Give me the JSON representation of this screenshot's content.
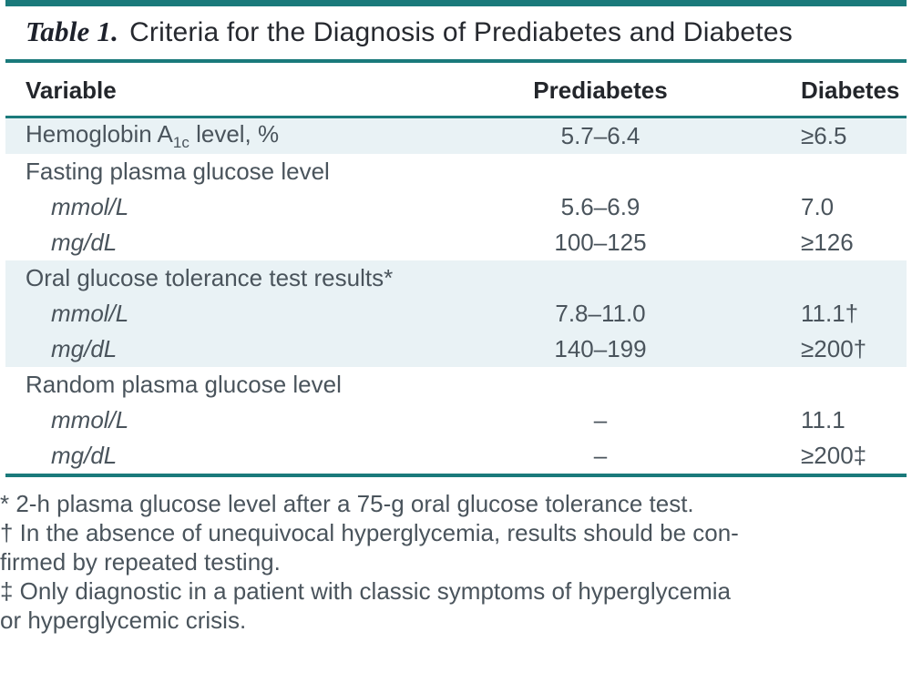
{
  "header": {
    "label": "Table 1.",
    "title": "Criteria for the Diagnosis of Prediabetes and Diabetes"
  },
  "colors": {
    "accent_teal": "#1a7a7b",
    "row_highlight": "#e9f2f5",
    "body_text": "#4a545c",
    "heading_text": "#23262b"
  },
  "table": {
    "columns": [
      "Variable",
      "Prediabetes",
      "Diabetes"
    ],
    "rows": [
      {
        "variable_pre": "Hemoglobin A",
        "variable_sub": "1c",
        "variable_post": " level, %",
        "prediabetes": "5.7–6.4",
        "diabetes": "≥6.5"
      },
      {
        "variable": "Fasting plasma glucose level",
        "prediabetes": "",
        "diabetes": ""
      },
      {
        "variable": "mmol/L",
        "prediabetes": "5.6–6.9",
        "diabetes": "7.0"
      },
      {
        "variable": "mg/dL",
        "prediabetes": "100–125",
        "diabetes": "≥126"
      },
      {
        "variable": "Oral glucose tolerance test results*",
        "prediabetes": "",
        "diabetes": ""
      },
      {
        "variable": "mmol/L",
        "prediabetes": "7.8–11.0",
        "diabetes": "11.1†"
      },
      {
        "variable": "mg/dL",
        "prediabetes": "140–199",
        "diabetes": "≥200†"
      },
      {
        "variable": "Random plasma glucose level",
        "prediabetes": "",
        "diabetes": ""
      },
      {
        "variable": "mmol/L",
        "prediabetes": "–",
        "diabetes": "11.1"
      },
      {
        "variable": "mg/dL",
        "prediabetes": "–",
        "diabetes": "≥200‡"
      }
    ]
  },
  "footnotes": {
    "lines": [
      "* 2-h plasma glucose level after a 75-g oral glucose tolerance test.",
      "† In the absence of unequivocal hyperglycemia, results should be con-",
      "firmed by repeated testing.",
      "‡ Only diagnostic in a patient with classic symptoms of hyperglycemia",
      "or hyperglycemic crisis."
    ]
  }
}
